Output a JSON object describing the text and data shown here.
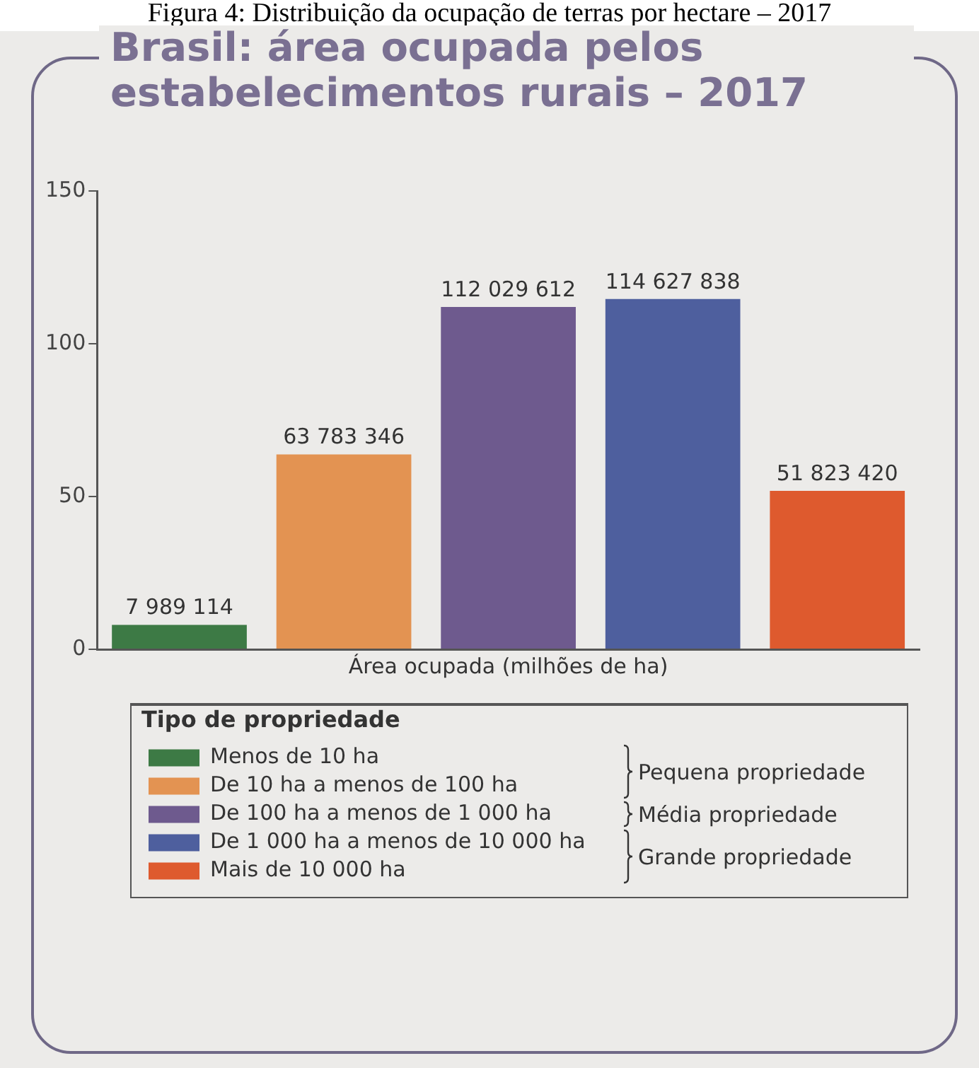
{
  "chart_data": {
    "type": "bar",
    "title": "Brasil: área ocupada pelos estabelecimentos rurais – 2017",
    "categories": [
      null,
      null,
      null,
      null,
      null
    ],
    "series": [
      {
        "name": "Menos de 10 ha",
        "color": "#3d7a45",
        "values": [
          7.989114,
          null,
          null,
          null,
          null
        ]
      },
      {
        "name": "De 10 ha a menos de 100 ha",
        "color": "#e39352",
        "values": [
          null,
          63.783346,
          null,
          null,
          null
        ]
      },
      {
        "name": "De 100 ha a menos de 1 000 ha",
        "color": "#6e5a8e",
        "values": [
          null,
          null,
          112.029612,
          null,
          null
        ]
      },
      {
        "name": "De 1 000 ha a menos de 10 000 ha",
        "color": "#4e5f9e",
        "values": [
          null,
          null,
          null,
          114.627838,
          null
        ]
      },
      {
        "name": "Mais de 10 000 ha",
        "color": "#de5a2e",
        "values": [
          null,
          null,
          null,
          null,
          51.82342
        ]
      }
    ],
    "xlabel": "Área ocupada (milhões de ha)",
    "legend_title": "Tipo de propriedade",
    "ylim": [
      0,
      150
    ],
    "yticks": [
      0,
      50,
      100,
      150
    ],
    "grid": false,
    "legend": "bottom",
    "tick_labels": "y",
    "annotations": [
      "Figura 4: Distribuição da ocupação de terras por hectare – 2017",
      "Pequena propriedade",
      "Média propriedade",
      "Grande propriedade",
      {
        "text": "7 989 114",
        "y": 7.989114
      },
      {
        "text": "63 783 346",
        "y": 63.783346
      },
      {
        "text": "112 029 612",
        "y": 112.029612
      },
      {
        "text": "114 627 838",
        "y": 114.627838
      },
      {
        "text": "51 823 420",
        "y": 51.82342
      }
    ]
  }
}
